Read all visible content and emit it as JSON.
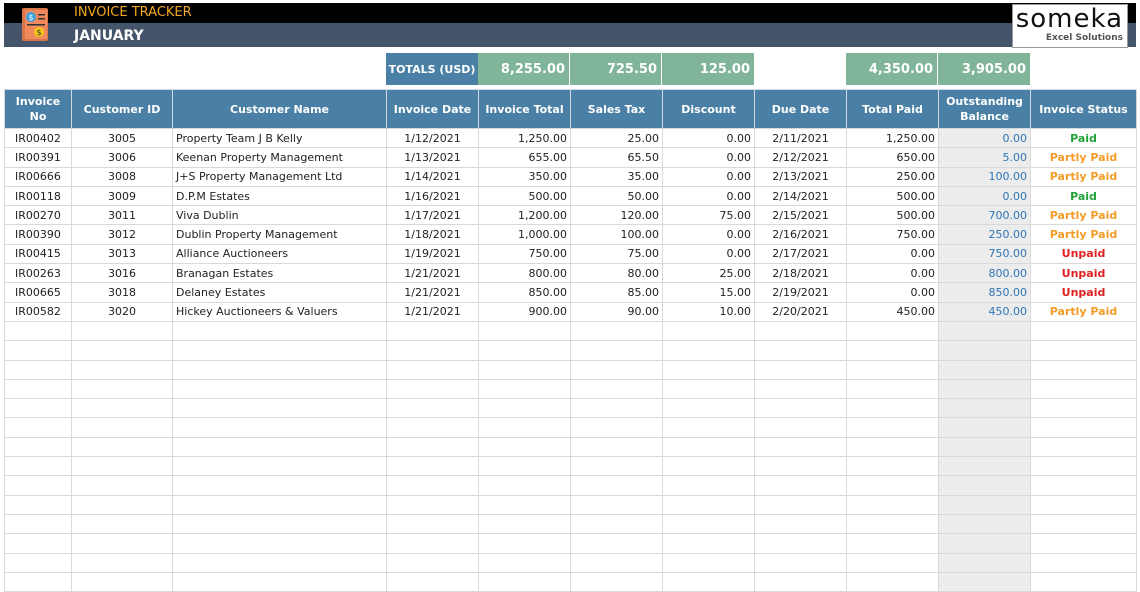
{
  "header": {
    "app_title": "INVOICE TRACKER",
    "month": "JANUARY",
    "brand_name": "someka",
    "brand_tagline": "Excel Solutions",
    "icon": "invoice-dollar-icon"
  },
  "totals": {
    "label": "TOTALS (USD)",
    "invoice_total": "8,255.00",
    "sales_tax": "725.50",
    "discount": "125.00",
    "total_paid": "4,350.00",
    "outstanding_balance": "3,905.00"
  },
  "colors": {
    "header_bg": "#4a7fa6",
    "totals_bg": "#80b59a",
    "paid": "#22a33a",
    "partly_paid": "#f39c27",
    "unpaid": "#e02020",
    "balance": "#2e75b6"
  },
  "columns": [
    "Invoice No",
    "Customer ID",
    "Customer Name",
    "Invoice Date",
    "Invoice Total",
    "Sales Tax",
    "Discount",
    "Due Date",
    "Total Paid",
    "Outstanding Balance",
    "Invoice Status"
  ],
  "rows": [
    [
      "IR00402",
      "3005",
      "Property Team J B Kelly",
      "1/12/2021",
      "1,250.00",
      "25.00",
      "0.00",
      "2/11/2021",
      "1,250.00",
      "0.00",
      "Paid"
    ],
    [
      "IR00391",
      "3006",
      "Keenan Property Management",
      "1/13/2021",
      "655.00",
      "65.50",
      "0.00",
      "2/12/2021",
      "650.00",
      "5.00",
      "Partly Paid"
    ],
    [
      "IR00666",
      "3008",
      "J+S Property Management Ltd",
      "1/14/2021",
      "350.00",
      "35.00",
      "0.00",
      "2/13/2021",
      "250.00",
      "100.00",
      "Partly Paid"
    ],
    [
      "IR00118",
      "3009",
      "D.P.M Estates",
      "1/16/2021",
      "500.00",
      "50.00",
      "0.00",
      "2/14/2021",
      "500.00",
      "0.00",
      "Paid"
    ],
    [
      "IR00270",
      "3011",
      "Viva Dublin",
      "1/17/2021",
      "1,200.00",
      "120.00",
      "75.00",
      "2/15/2021",
      "500.00",
      "700.00",
      "Partly Paid"
    ],
    [
      "IR00390",
      "3012",
      "Dublin Property Management",
      "1/18/2021",
      "1,000.00",
      "100.00",
      "0.00",
      "2/16/2021",
      "750.00",
      "250.00",
      "Partly Paid"
    ],
    [
      "IR00415",
      "3013",
      "Alliance Auctioneers",
      "1/19/2021",
      "750.00",
      "75.00",
      "0.00",
      "2/17/2021",
      "0.00",
      "750.00",
      "Unpaid"
    ],
    [
      "IR00263",
      "3016",
      "Branagan Estates",
      "1/21/2021",
      "800.00",
      "80.00",
      "25.00",
      "2/18/2021",
      "0.00",
      "800.00",
      "Unpaid"
    ],
    [
      "IR00665",
      "3018",
      "Delaney Estates",
      "1/21/2021",
      "850.00",
      "85.00",
      "15.00",
      "2/19/2021",
      "0.00",
      "850.00",
      "Unpaid"
    ],
    [
      "IR00582",
      "3020",
      "Hickey Auctioneers & Valuers",
      "1/21/2021",
      "900.00",
      "90.00",
      "10.00",
      "2/20/2021",
      "450.00",
      "450.00",
      "Partly Paid"
    ]
  ]
}
